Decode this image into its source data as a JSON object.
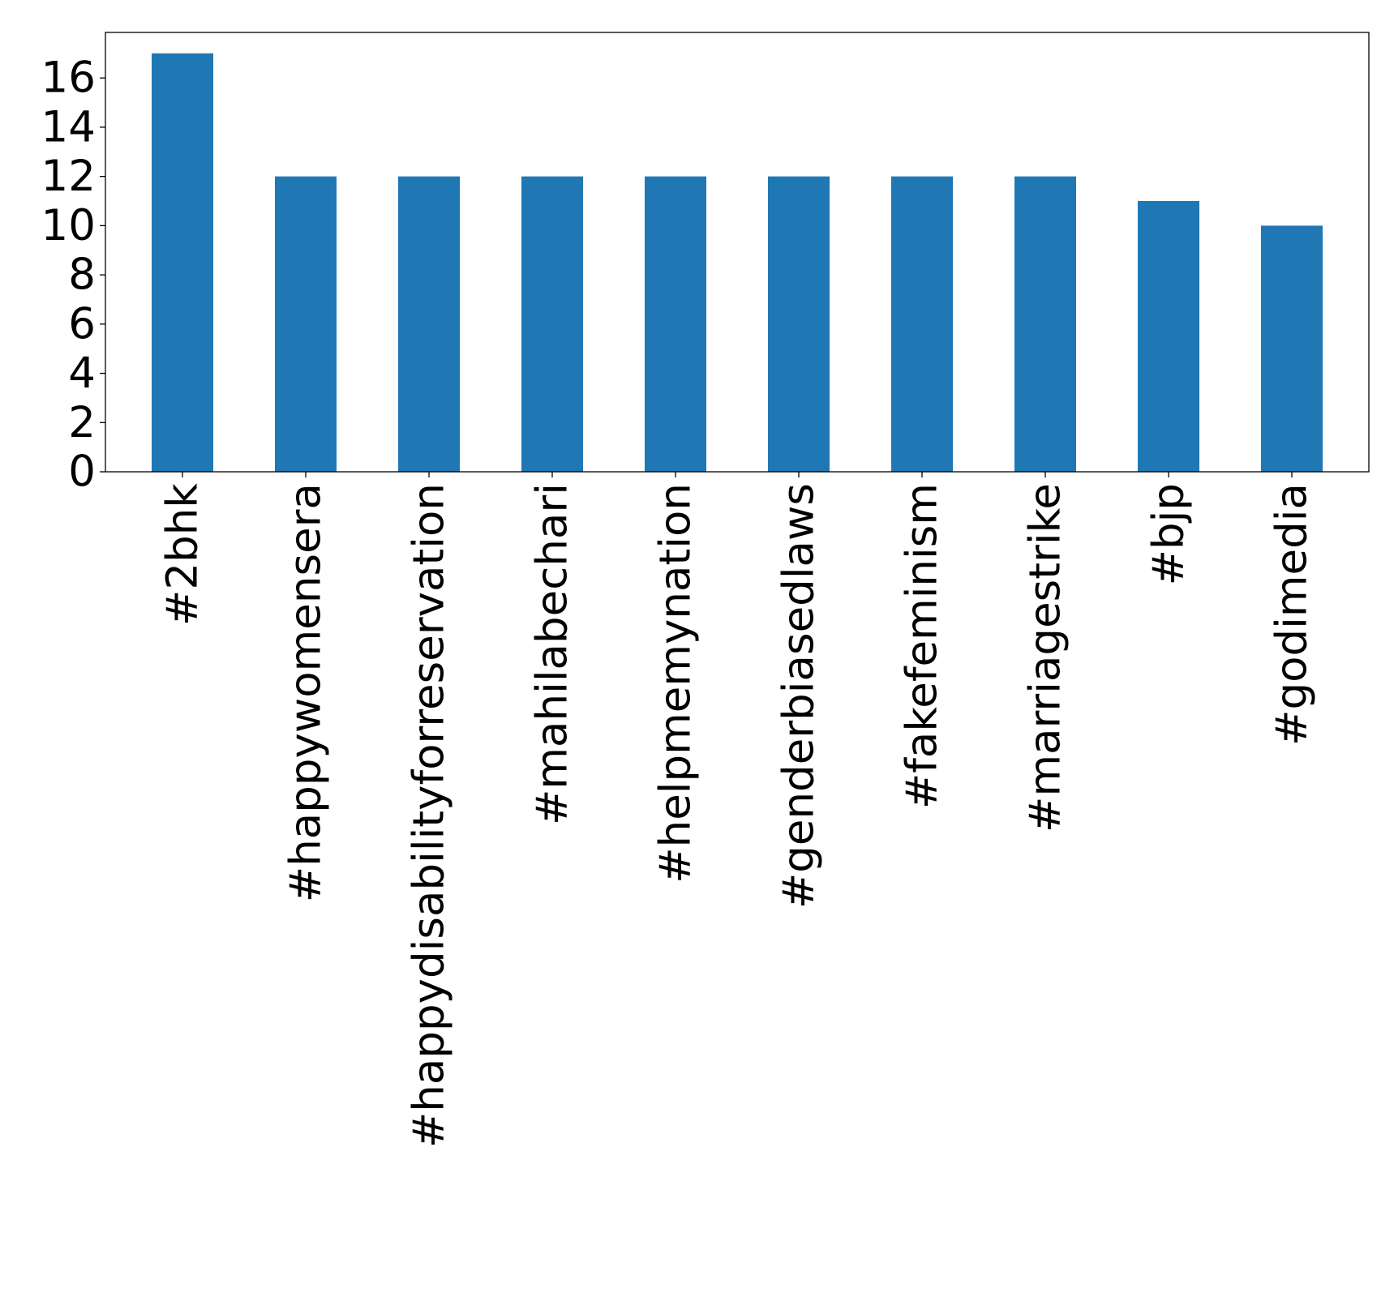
{
  "chart_data": {
    "type": "bar",
    "title": "",
    "xlabel": "",
    "ylabel": "",
    "categories": [
      "#2bhk",
      "#happywomensera",
      "#happydisabilityforreservation",
      "#mahilabechari",
      "#helpmemynation",
      "#genderbiasedlaws",
      "#fakefeminism",
      "#marriagestrike",
      "#bjp",
      "#godimedia"
    ],
    "values": [
      17,
      12,
      12,
      12,
      12,
      12,
      12,
      12,
      11,
      10
    ],
    "ylim": [
      0,
      17.85
    ],
    "yticks": [
      0,
      2,
      4,
      6,
      8,
      10,
      12,
      14,
      16
    ],
    "grid": false,
    "legend": "none",
    "bar_color": "#1f77b4"
  }
}
